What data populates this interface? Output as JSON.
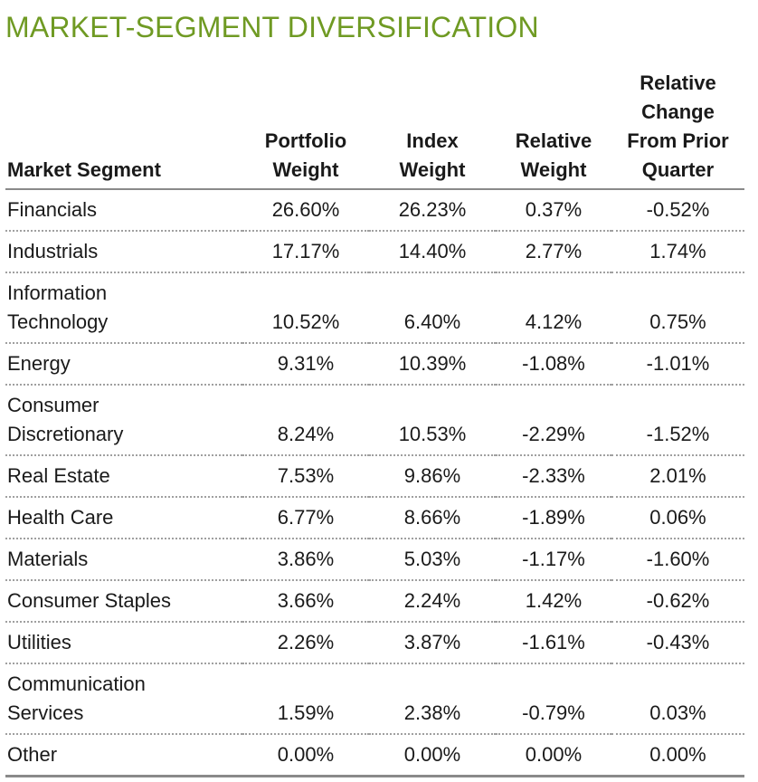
{
  "title": "MARKET-SEGMENT DIVERSIFICATION",
  "headers": {
    "segment": "Market Segment",
    "portfolio_weight": [
      "Portfolio",
      "Weight"
    ],
    "index_weight": [
      "Index",
      "Weight"
    ],
    "relative_weight": [
      "Relative",
      "Weight"
    ],
    "relative_change": [
      "Relative",
      "Change",
      "From Prior",
      "Quarter"
    ]
  },
  "rows": [
    {
      "segment": [
        "Financials"
      ],
      "portfolio": "26.60%",
      "index": "26.23%",
      "relative": "0.37%",
      "change": "-0.52%"
    },
    {
      "segment": [
        "Industrials"
      ],
      "portfolio": "17.17%",
      "index": "14.40%",
      "relative": "2.77%",
      "change": "1.74%"
    },
    {
      "segment": [
        "Information",
        "Technology"
      ],
      "portfolio": "10.52%",
      "index": "6.40%",
      "relative": "4.12%",
      "change": "0.75%"
    },
    {
      "segment": [
        "Energy"
      ],
      "portfolio": "9.31%",
      "index": "10.39%",
      "relative": "-1.08%",
      "change": "-1.01%"
    },
    {
      "segment": [
        "Consumer",
        "Discretionary"
      ],
      "portfolio": "8.24%",
      "index": "10.53%",
      "relative": "-2.29%",
      "change": "-1.52%"
    },
    {
      "segment": [
        "Real Estate"
      ],
      "portfolio": "7.53%",
      "index": "9.86%",
      "relative": "-2.33%",
      "change": "2.01%"
    },
    {
      "segment": [
        "Health Care"
      ],
      "portfolio": "6.77%",
      "index": "8.66%",
      "relative": "-1.89%",
      "change": "0.06%"
    },
    {
      "segment": [
        "Materials"
      ],
      "portfolio": "3.86%",
      "index": "5.03%",
      "relative": "-1.17%",
      "change": "-1.60%"
    },
    {
      "segment": [
        "Consumer Staples"
      ],
      "portfolio": "3.66%",
      "index": "2.24%",
      "relative": "1.42%",
      "change": "-0.62%"
    },
    {
      "segment": [
        "Utilities"
      ],
      "portfolio": "2.26%",
      "index": "3.87%",
      "relative": "-1.61%",
      "change": "-0.43%"
    },
    {
      "segment": [
        "Communication",
        "Services"
      ],
      "portfolio": "1.59%",
      "index": "2.38%",
      "relative": "-0.79%",
      "change": "0.03%"
    },
    {
      "segment": [
        "Other"
      ],
      "portfolio": "0.00%",
      "index": "0.00%",
      "relative": "0.00%",
      "change": "0.00%"
    }
  ],
  "colors": {
    "title": "#6f9a23",
    "rule": "#8a8a8a"
  }
}
